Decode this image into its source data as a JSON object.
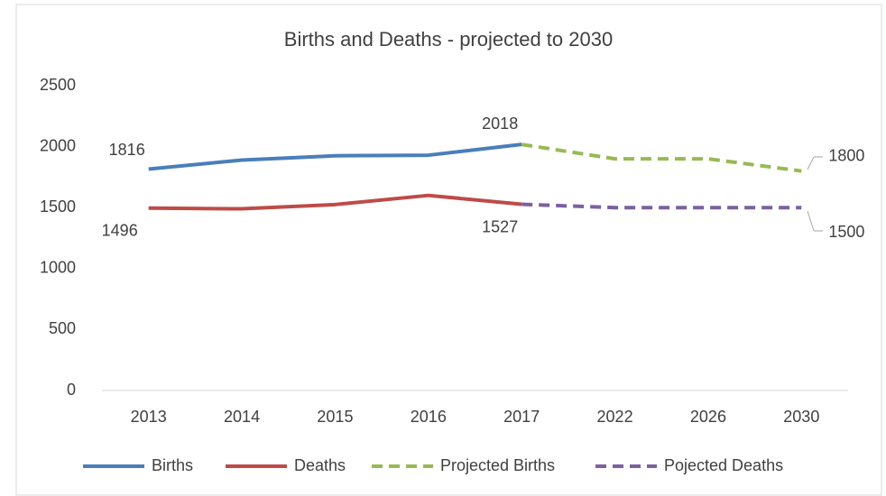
{
  "chart_data": {
    "type": "line",
    "title": "Births and Deaths - projected to 2030",
    "categories": [
      "2013",
      "2014",
      "2015",
      "2016",
      "2017",
      "2022",
      "2026",
      "2030"
    ],
    "series": [
      {
        "name": "Births",
        "color": "#4a7ebb",
        "dashed": false,
        "values": [
          1816,
          1890,
          1925,
          1930,
          2018,
          null,
          null,
          null
        ],
        "value_labels": [
          "1816",
          null,
          null,
          null,
          "2018",
          null,
          null,
          null
        ]
      },
      {
        "name": "Deaths",
        "color": "#be4b48",
        "dashed": false,
        "values": [
          1496,
          1490,
          1525,
          1600,
          1527,
          null,
          null,
          null
        ],
        "value_labels": [
          "1496",
          null,
          null,
          null,
          "1527",
          null,
          null,
          null
        ]
      },
      {
        "name": "Projected Births",
        "color": "#98b954",
        "dashed": true,
        "values": [
          null,
          null,
          null,
          null,
          2018,
          1900,
          1900,
          1800
        ],
        "value_labels": [
          null,
          null,
          null,
          null,
          null,
          null,
          null,
          "1800"
        ]
      },
      {
        "name": "Pojected Deaths",
        "color": "#7d60a0",
        "dashed": true,
        "values": [
          null,
          null,
          null,
          null,
          1527,
          1500,
          1500,
          1500
        ],
        "value_labels": [
          null,
          null,
          null,
          null,
          null,
          null,
          null,
          "1500"
        ]
      }
    ],
    "ylim": [
      0,
      2500
    ],
    "yticks": [
      0,
      500,
      1000,
      1500,
      2000,
      2500
    ],
    "grid": false,
    "legend": "bottom"
  }
}
